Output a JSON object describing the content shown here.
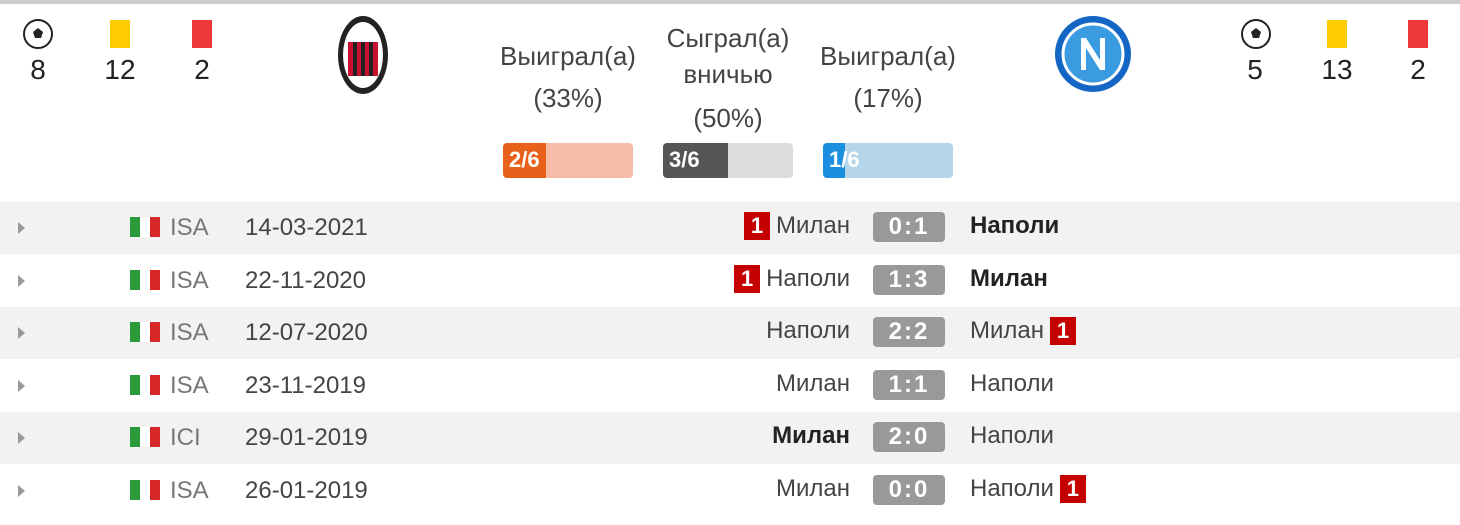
{
  "home_team": {
    "name": "Milan",
    "goals": 8,
    "yellow_cards": 12,
    "red_cards": 2
  },
  "away_team": {
    "name": "Napoli",
    "goals": 5,
    "yellow_cards": 13,
    "red_cards": 2
  },
  "summary": [
    {
      "title": "Выиграл(а)",
      "share": {
        "value": 33,
        "label": "(33%)"
      },
      "count": "2/6",
      "color": "#e8611a",
      "track": "#f7bca5"
    },
    {
      "title": "Сыграл(а) вничью",
      "share": {
        "value": 50,
        "label": "(50%)"
      },
      "count": "3/6",
      "color": "#555555",
      "track": "#dcdcdc"
    },
    {
      "title": "Выиграл(а)",
      "share": {
        "value": 17,
        "label": "(17%)"
      },
      "count": "1/6",
      "color": "#1a8fe0",
      "track": "#b5d5ea"
    }
  ],
  "matches": [
    {
      "league": "ISA",
      "date": "14-03-2021",
      "home": "Милан",
      "score": "0:1",
      "away": "Наполи",
      "winner": "away",
      "home_red": 1,
      "away_red": null
    },
    {
      "league": "ISA",
      "date": "22-11-2020",
      "home": "Наполи",
      "score": "1:3",
      "away": "Милан",
      "winner": "away",
      "home_red": 1,
      "away_red": null
    },
    {
      "league": "ISA",
      "date": "12-07-2020",
      "home": "Наполи",
      "score": "2:2",
      "away": "Милан",
      "winner": null,
      "home_red": null,
      "away_red": 1
    },
    {
      "league": "ISA",
      "date": "23-11-2019",
      "home": "Милан",
      "score": "1:1",
      "away": "Наполи",
      "winner": null,
      "home_red": null,
      "away_red": null
    },
    {
      "league": "ICI",
      "date": "29-01-2019",
      "home": "Милан",
      "score": "2:0",
      "away": "Наполи",
      "winner": "home",
      "home_red": null,
      "away_red": null
    },
    {
      "league": "ISA",
      "date": "26-01-2019",
      "home": "Милан",
      "score": "0:0",
      "away": "Наполи",
      "winner": null,
      "home_red": null,
      "away_red": 1
    }
  ]
}
